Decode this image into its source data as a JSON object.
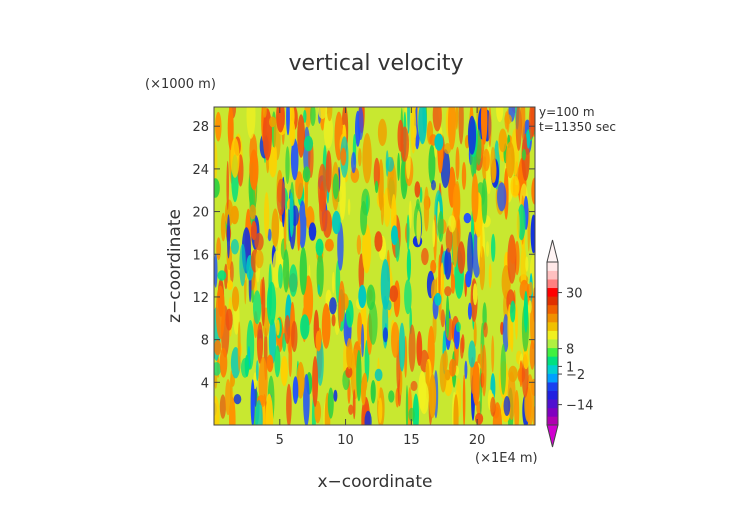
{
  "chart_data": {
    "type": "heatmap",
    "title": "vertical velocity",
    "xlabel": "x−coordinate",
    "ylabel": "z−coordinate",
    "x_unit": "(×1E4 m)",
    "y_unit": "(×1000 m)",
    "annotations": [
      "y=100 m",
      "t=11350 sec"
    ],
    "xlim": [
      0,
      24.4
    ],
    "ylim": [
      0,
      29.8
    ],
    "x_ticks": [
      5,
      10,
      15,
      20
    ],
    "y_ticks": [
      4,
      8,
      12,
      16,
      20,
      24,
      28
    ],
    "colorbar": {
      "labels": [
        "30",
        "8",
        "1",
        "−2",
        "−14"
      ],
      "label_values": [
        30,
        8,
        1,
        -2,
        -14
      ],
      "vmin": -22,
      "vmax": 42,
      "colors": [
        "#b000b0",
        "#8000c0",
        "#5010d0",
        "#2020e0",
        "#1840f0",
        "#00a0ff",
        "#00d0d0",
        "#00e080",
        "#40f040",
        "#b0f040",
        "#f0f020",
        "#f0c000",
        "#f09000",
        "#f06000",
        "#e03000",
        "#ff0000",
        "#ff8080",
        "#ffc0c0",
        "#ffe8e8"
      ]
    },
    "field": {
      "description": "vertical velocity field with vertically elongated streaks",
      "dominant_range": [
        -14,
        8
      ],
      "streak_orientation": "vertical"
    }
  }
}
